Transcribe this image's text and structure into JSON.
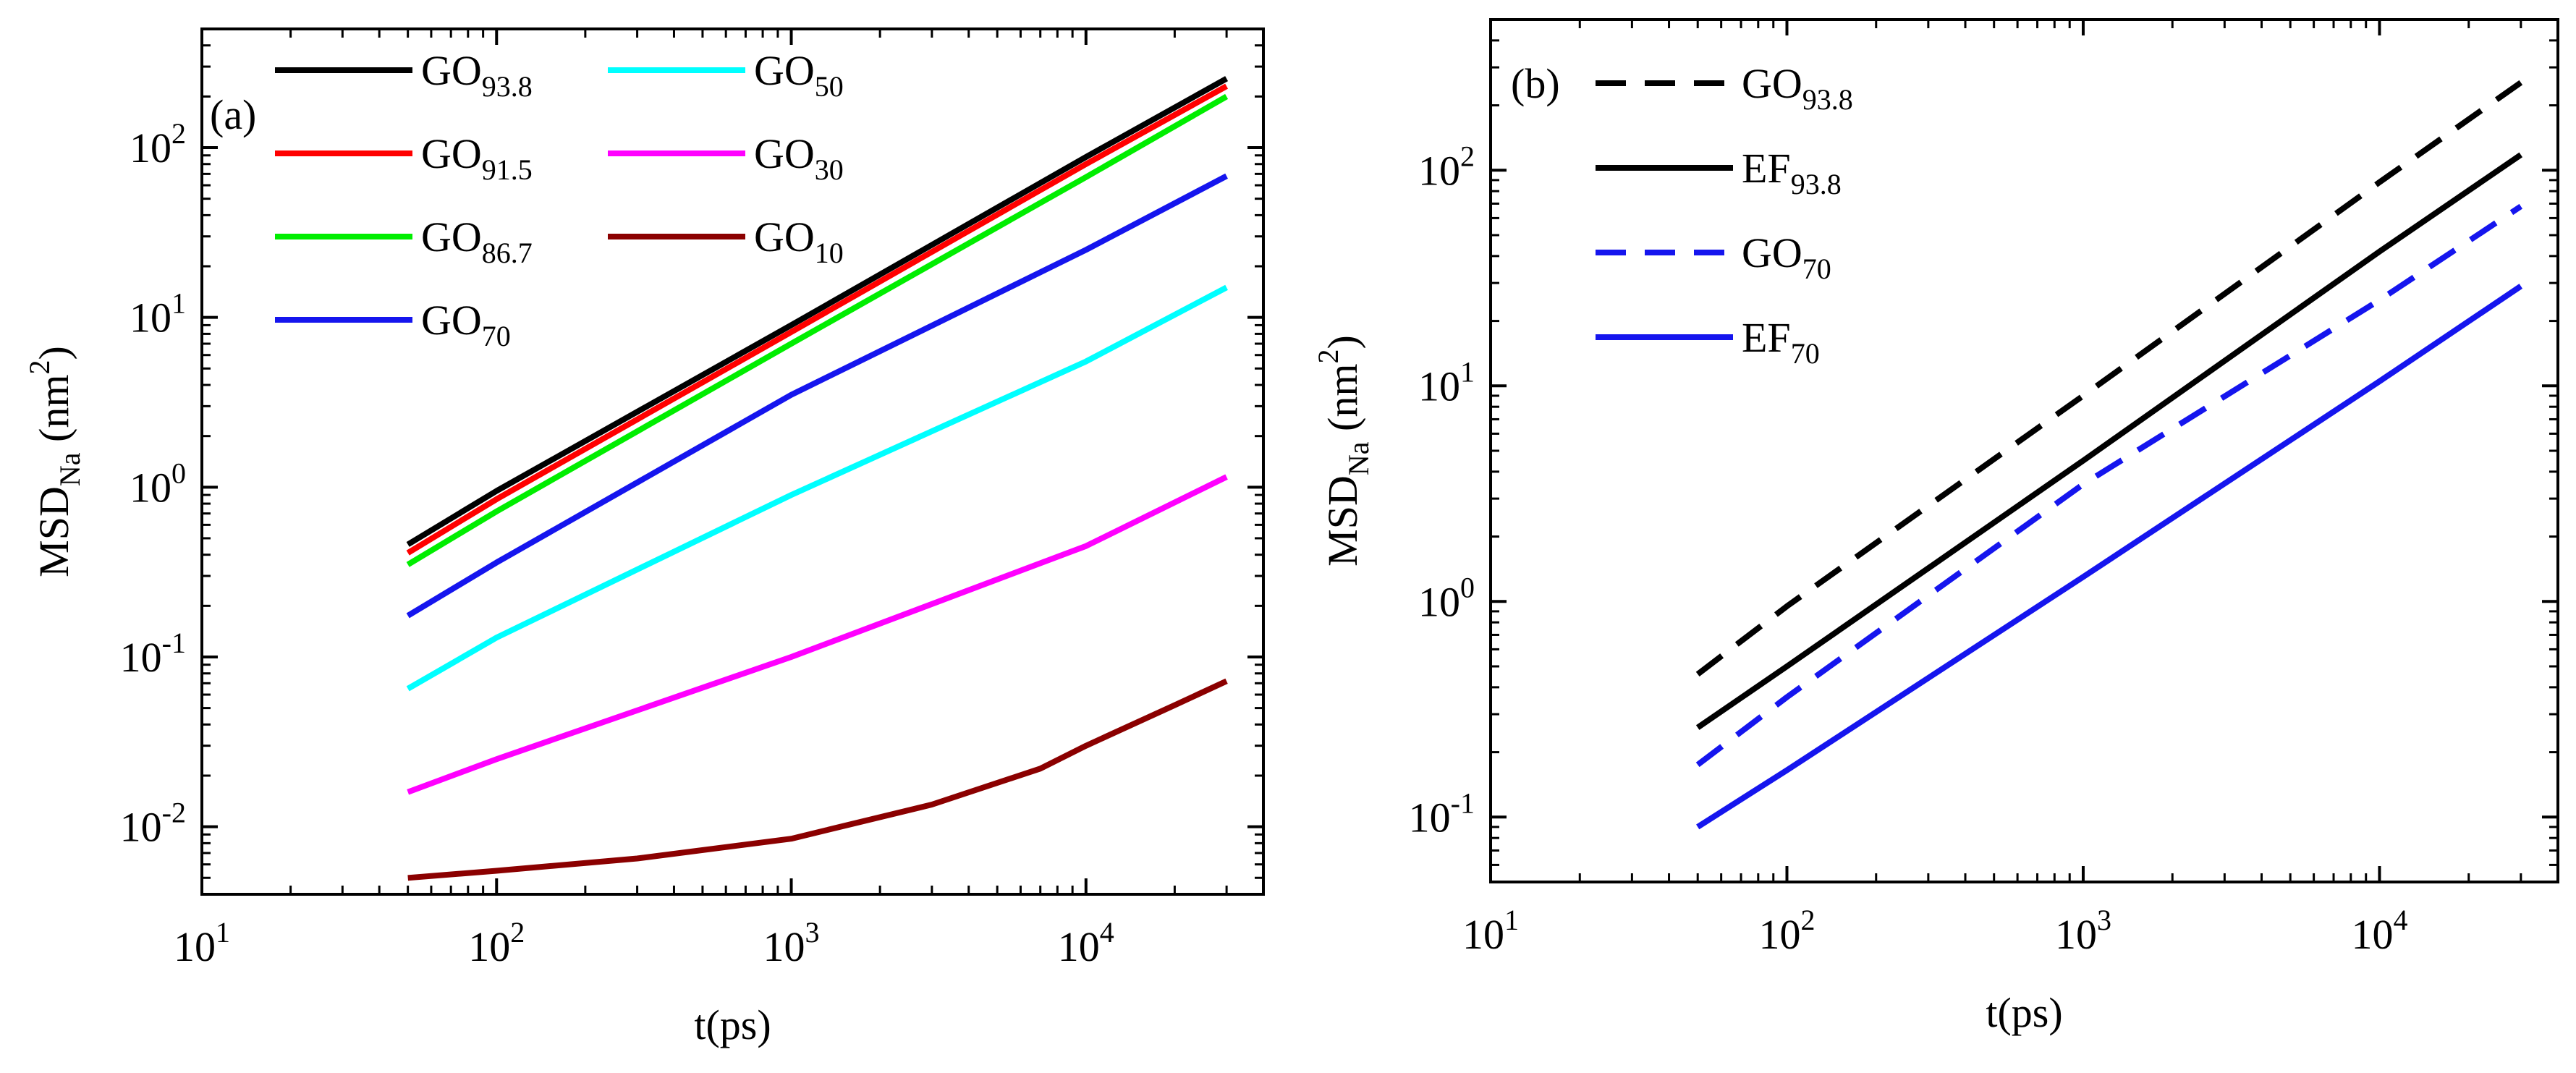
{
  "chart_data": [
    {
      "panel_label": "(a)",
      "type": "line",
      "xscale": "log",
      "yscale": "log",
      "xlim": [
        10,
        40000
      ],
      "ylim": [
        0.004,
        500
      ],
      "xlabel": "t(ps)",
      "ylabel": {
        "main": "MSD",
        "sub": "Na",
        "unit_open": " (nm",
        "unit_sup": "2",
        "unit_close": ")"
      },
      "xticks": [
        {
          "base": "10",
          "exp": "1",
          "v": 10
        },
        {
          "base": "10",
          "exp": "2",
          "v": 100
        },
        {
          "base": "10",
          "exp": "3",
          "v": 1000
        },
        {
          "base": "10",
          "exp": "4",
          "v": 10000
        }
      ],
      "yticks": [
        {
          "base": "10",
          "exp": "-2",
          "v": 0.01
        },
        {
          "base": "10",
          "exp": "-1",
          "v": 0.1
        },
        {
          "base": "10",
          "exp": "0",
          "v": 1
        },
        {
          "base": "10",
          "exp": "1",
          "v": 10
        },
        {
          "base": "10",
          "exp": "2",
          "v": 100
        }
      ],
      "grid": false,
      "legend_position": "top-left",
      "series": [
        {
          "name": {
            "base": "GO",
            "sub": "93.8"
          },
          "color": "#000000",
          "dash": "solid",
          "x": [
            50,
            100,
            1000,
            10000,
            30000
          ],
          "y": [
            0.46,
            0.95,
            9.0,
            88,
            255
          ]
        },
        {
          "name": {
            "base": "GO",
            "sub": "91.5"
          },
          "color": "#ff0000",
          "dash": "solid",
          "x": [
            50,
            100,
            1000,
            10000,
            30000
          ],
          "y": [
            0.41,
            0.85,
            8.2,
            80,
            230
          ]
        },
        {
          "name": {
            "base": "GO",
            "sub": "86.7"
          },
          "color": "#00ee00",
          "dash": "solid",
          "x": [
            50,
            100,
            1000,
            10000,
            30000
          ],
          "y": [
            0.35,
            0.72,
            7.0,
            67,
            200
          ]
        },
        {
          "name": {
            "base": "GO",
            "sub": "70"
          },
          "color": "#1515ee",
          "dash": "solid",
          "x": [
            50,
            100,
            1000,
            10000,
            30000
          ],
          "y": [
            0.175,
            0.36,
            3.5,
            25,
            68
          ]
        },
        {
          "name": {
            "base": "GO",
            "sub": "50"
          },
          "color": "#00ffff",
          "dash": "solid",
          "x": [
            50,
            100,
            1000,
            10000,
            30000
          ],
          "y": [
            0.065,
            0.13,
            0.9,
            5.5,
            15
          ]
        },
        {
          "name": {
            "base": "GO",
            "sub": "30"
          },
          "color": "#ff00ff",
          "dash": "solid",
          "x": [
            50,
            100,
            1000,
            10000,
            30000
          ],
          "y": [
            0.016,
            0.025,
            0.1,
            0.45,
            1.15
          ]
        },
        {
          "name": {
            "base": "GO",
            "sub": "10"
          },
          "color": "#8b0000",
          "dash": "solid",
          "x": [
            50,
            100,
            300,
            1000,
            3000,
            7000,
            10000,
            20000,
            30000
          ],
          "y": [
            0.005,
            0.0055,
            0.0065,
            0.0085,
            0.0135,
            0.022,
            0.03,
            0.052,
            0.072
          ]
        }
      ]
    },
    {
      "panel_label": "(b)",
      "type": "line",
      "xscale": "log",
      "yscale": "log",
      "xlim": [
        10,
        40000
      ],
      "ylim": [
        0.05,
        500
      ],
      "xlabel": "t(ps)",
      "ylabel": {
        "main": "MSD",
        "sub": "Na",
        "unit_open": " (nm",
        "unit_sup": "2",
        "unit_close": ")"
      },
      "xticks": [
        {
          "base": "10",
          "exp": "1",
          "v": 10
        },
        {
          "base": "10",
          "exp": "2",
          "v": 100
        },
        {
          "base": "10",
          "exp": "3",
          "v": 1000
        },
        {
          "base": "10",
          "exp": "4",
          "v": 10000
        }
      ],
      "yticks": [
        {
          "base": "10",
          "exp": "-1",
          "v": 0.1
        },
        {
          "base": "10",
          "exp": "0",
          "v": 1
        },
        {
          "base": "10",
          "exp": "1",
          "v": 10
        },
        {
          "base": "10",
          "exp": "2",
          "v": 100
        }
      ],
      "grid": false,
      "legend_position": "top-left",
      "series": [
        {
          "name": {
            "base": "GO",
            "sub": "93.8"
          },
          "color": "#000000",
          "dash": "dashed",
          "x": [
            50,
            100,
            1000,
            10000,
            30000
          ],
          "y": [
            0.46,
            0.95,
            9.0,
            88,
            255
          ]
        },
        {
          "name": {
            "base": "EF",
            "sub": "93.8"
          },
          "color": "#000000",
          "dash": "solid",
          "x": [
            50,
            100,
            1000,
            10000,
            30000
          ],
          "y": [
            0.26,
            0.5,
            4.5,
            42,
            118
          ]
        },
        {
          "name": {
            "base": "GO",
            "sub": "70"
          },
          "color": "#1515ee",
          "dash": "dashed",
          "x": [
            50,
            100,
            1000,
            10000,
            30000
          ],
          "y": [
            0.175,
            0.36,
            3.5,
            25,
            68
          ]
        },
        {
          "name": {
            "base": "EF",
            "sub": "70"
          },
          "color": "#1515ee",
          "dash": "solid",
          "x": [
            50,
            100,
            1000,
            10000,
            30000
          ],
          "y": [
            0.09,
            0.165,
            1.3,
            10.5,
            29
          ]
        }
      ]
    }
  ]
}
